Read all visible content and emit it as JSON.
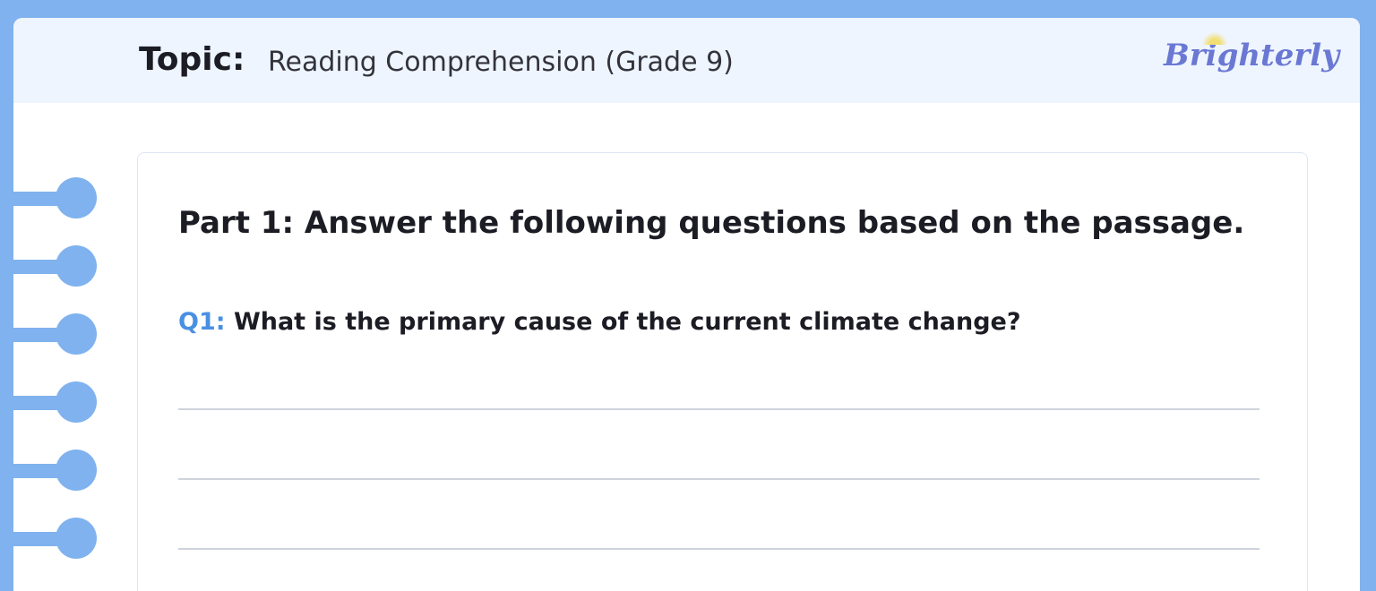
{
  "header": {
    "topic_label": "Topic:",
    "topic_value": "Reading Comprehension (Grade 9)",
    "logo": "Brighterly"
  },
  "worksheet": {
    "part_title": "Part 1: Answer the following questions based on the passage.",
    "questions": [
      {
        "number": "Q1:",
        "text": "What is the primary cause of the current climate change?"
      }
    ]
  },
  "colors": {
    "background": "#7fb2ee",
    "header": "#eef5fe",
    "question_number": "#4a90e2",
    "logo": "#6a78d4"
  }
}
